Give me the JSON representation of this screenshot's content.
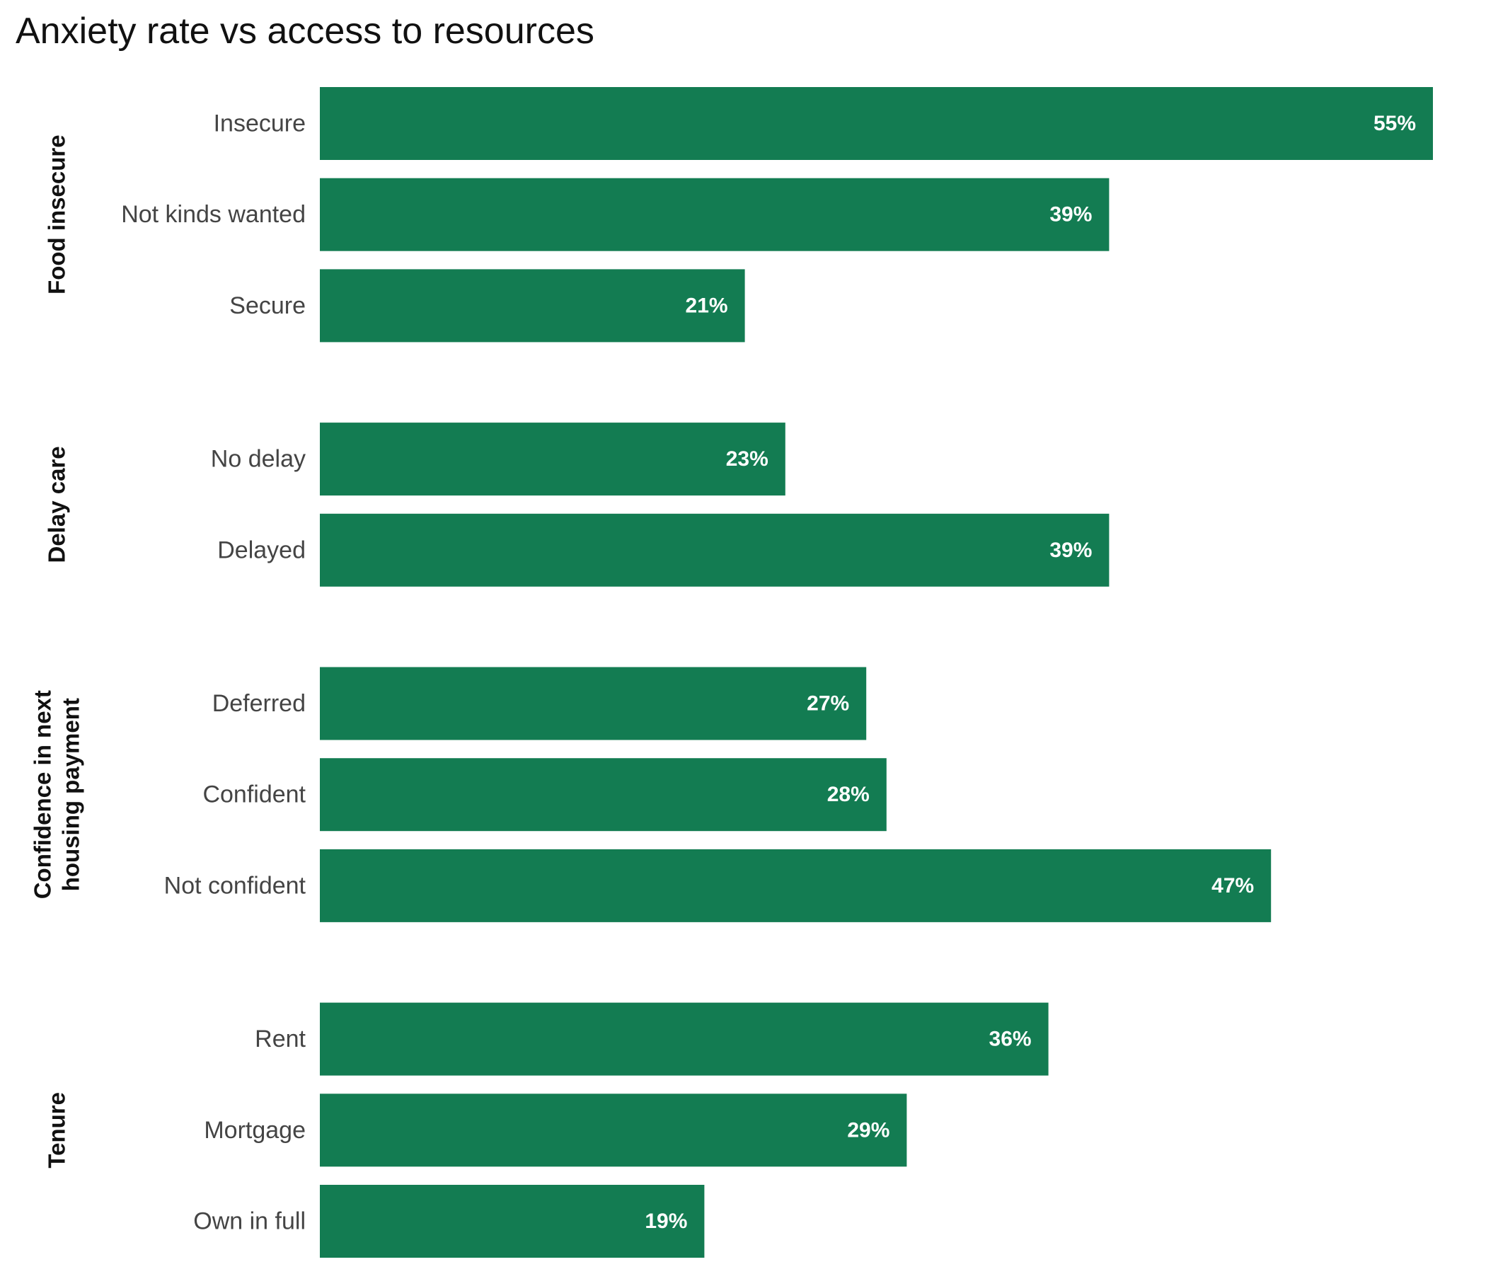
{
  "chart_data": {
    "type": "bar",
    "orientation": "horizontal",
    "title": "Anxiety rate vs access to resources",
    "bar_color": "#137c52",
    "value_suffix": "%",
    "xlim": [
      0,
      55
    ],
    "grid": false,
    "groups": [
      {
        "name": "Food insecure",
        "name_lines": [
          "Food insecure"
        ],
        "categories": [
          "Insecure",
          "Not kinds wanted",
          "Secure"
        ],
        "values": [
          55,
          39,
          21
        ]
      },
      {
        "name": "Delay care",
        "name_lines": [
          "Delay care"
        ],
        "categories": [
          "No delay",
          "Delayed"
        ],
        "values": [
          23,
          39
        ]
      },
      {
        "name": "Confidence in next housing payment",
        "name_lines": [
          "Confidence in next",
          "housing payment"
        ],
        "categories": [
          "Deferred",
          "Confident",
          "Not confident"
        ],
        "values": [
          27,
          28,
          47
        ]
      },
      {
        "name": "Tenure",
        "name_lines": [
          "Tenure"
        ],
        "categories": [
          "Rent",
          "Mortgage",
          "Own in full"
        ],
        "values": [
          36,
          29,
          19
        ]
      }
    ]
  }
}
